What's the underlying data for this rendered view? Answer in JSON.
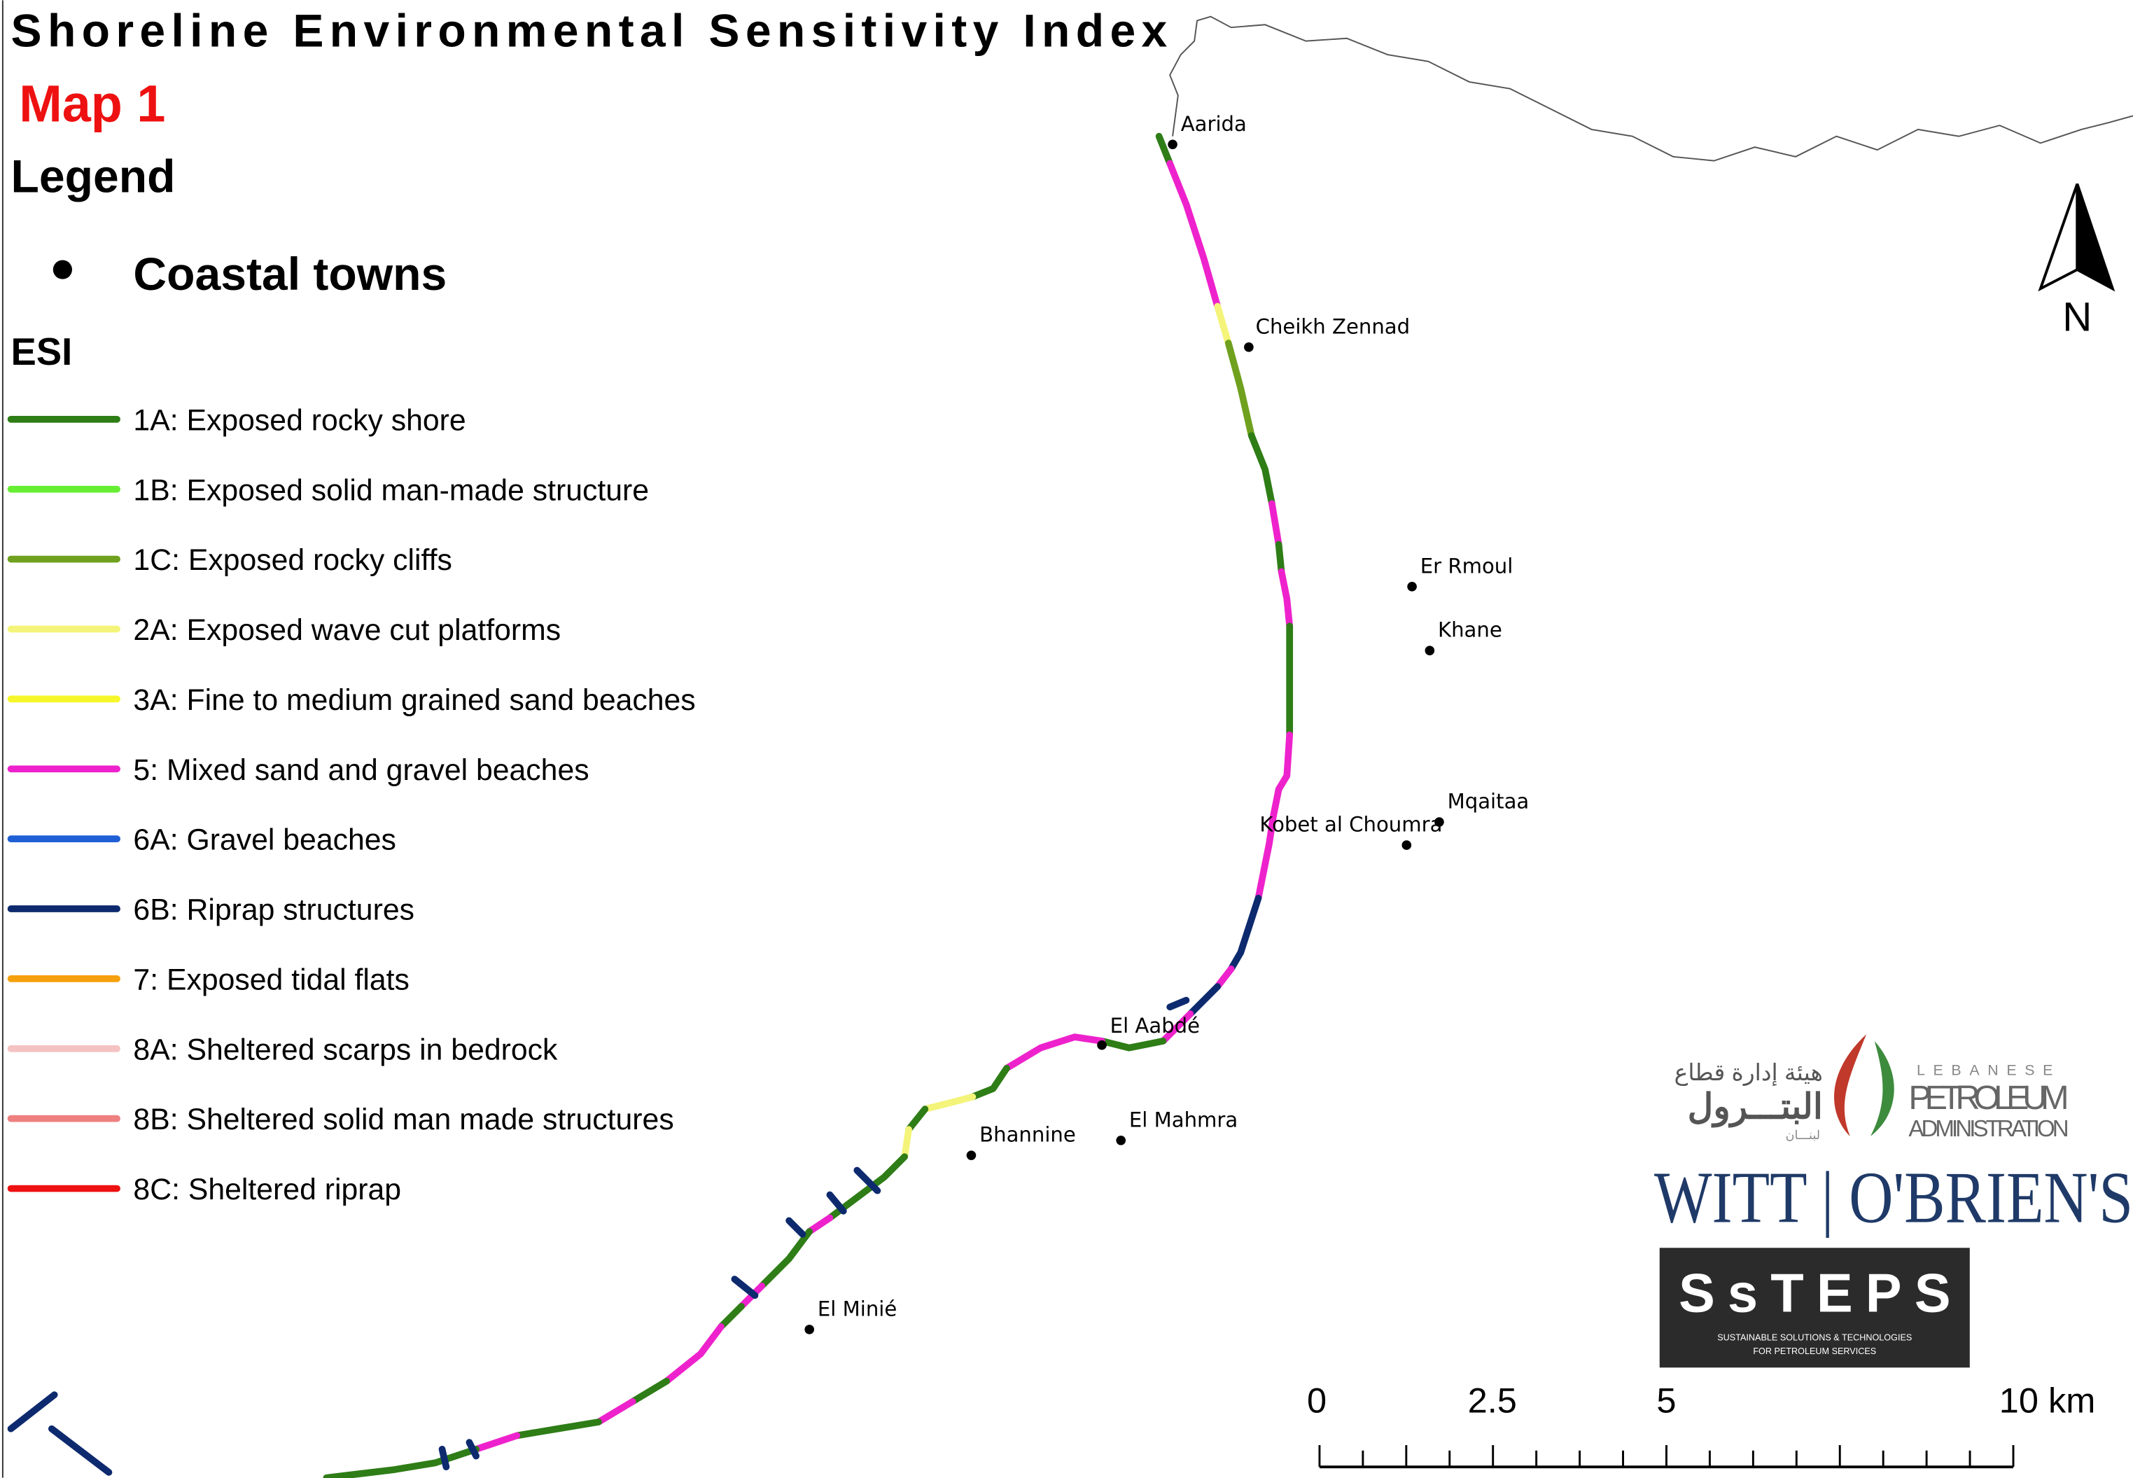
{
  "header": {
    "title": "Shoreline Environmental Sensitivity Index",
    "subtitle": "Map 1",
    "legend_title": "Legend"
  },
  "legend": {
    "towns_label": "Coastal towns",
    "esi_title": "ESI",
    "items": [
      {
        "label": "1A: Exposed rocky shore",
        "color": "#2e7d16"
      },
      {
        "label": "1B: Exposed solid man-made structure",
        "color": "#66ee33"
      },
      {
        "label": "1C: Exposed rocky cliffs",
        "color": "#6fa11e"
      },
      {
        "label": "2A: Exposed wave cut platforms",
        "color": "#f4f47a"
      },
      {
        "label": "3A: Fine to medium grained sand beaches",
        "color": "#f6f62a"
      },
      {
        "label": "5: Mixed sand and gravel beaches",
        "color": "#ee22cc"
      },
      {
        "label": "6A: Gravel beaches",
        "color": "#1f5fd6"
      },
      {
        "label": "6B: Riprap structures",
        "color": "#0d2a6e"
      },
      {
        "label": "7: Exposed tidal flats",
        "color": "#f5a00c"
      },
      {
        "label": "8A: Sheltered scarps in bedrock",
        "color": "#f5c2c2"
      },
      {
        "label": "8B: Sheltered solid man made structures",
        "color": "#ee8080"
      },
      {
        "label": "8C: Sheltered riprap",
        "color": "#ee1111"
      }
    ]
  },
  "towns": [
    "Aarida",
    "Cheikh Zennad",
    "Er Rmoul",
    "Khane",
    "Mqaitaa",
    "Kobet al Choumra",
    "El Aabdé",
    "El Mahmra",
    "Bhannine",
    "El Minié"
  ],
  "north": "N",
  "scale_bar": {
    "labels": [
      "0",
      "2.5",
      "5",
      "10 km"
    ]
  },
  "logos": {
    "lpa_arabic_1": "هيئة إدارة قطاع",
    "lpa_arabic_2": "البتـــرول",
    "lpa_arabic_3": "لبنـــان",
    "lpa_1": "LEBANESE",
    "lpa_2": "PETROLEUM",
    "lpa_3": "ADMINISTRATION",
    "witt": "WITT | O'BRIEN'S",
    "steps": "SsTEPS",
    "steps_sub_1": "SUSTAINABLE SOLUTIONS & TECHNOLOGIES",
    "steps_sub_2": "FOR PETROLEUM SERVICES"
  }
}
